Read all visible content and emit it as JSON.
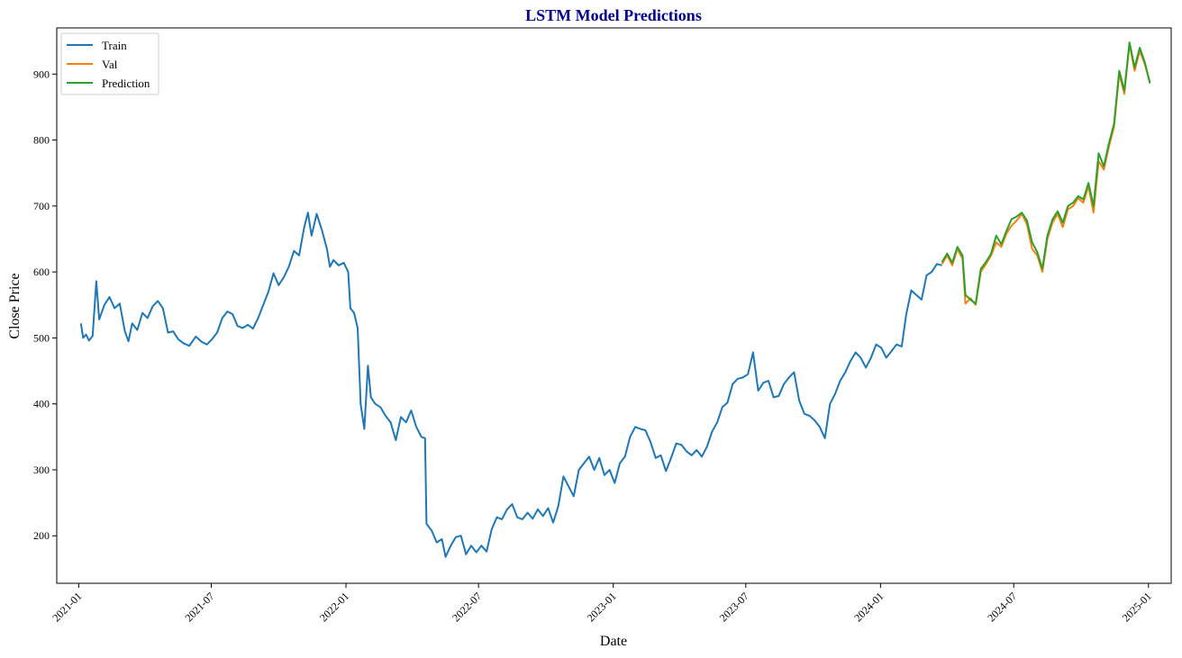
{
  "chart_data": {
    "type": "line",
    "title": "LSTM Model Predictions",
    "title_color": "#00008b",
    "xlabel": "Date",
    "ylabel": "Close Price",
    "xlim": [
      "2020-12-02",
      "2025-02-01"
    ],
    "ylim": [
      128,
      970
    ],
    "x_ticks": [
      "2021-01",
      "2021-07",
      "2022-01",
      "2022-07",
      "2023-01",
      "2023-07",
      "2024-01",
      "2024-07",
      "2025-01"
    ],
    "y_ticks": [
      200,
      300,
      400,
      500,
      600,
      700,
      800,
      900
    ],
    "grid": false,
    "legend_position": "top-left",
    "series": [
      {
        "name": "Train",
        "color": "#1f77b4",
        "points": [
          [
            "2021-01-04",
            522
          ],
          [
            "2021-01-07",
            500
          ],
          [
            "2021-01-11",
            505
          ],
          [
            "2021-01-15",
            496
          ],
          [
            "2021-01-20",
            503
          ],
          [
            "2021-01-25",
            586
          ],
          [
            "2021-01-29",
            528
          ],
          [
            "2021-02-05",
            550
          ],
          [
            "2021-02-12",
            562
          ],
          [
            "2021-02-19",
            545
          ],
          [
            "2021-02-26",
            552
          ],
          [
            "2021-03-05",
            510
          ],
          [
            "2021-03-10",
            495
          ],
          [
            "2021-03-15",
            522
          ],
          [
            "2021-03-22",
            512
          ],
          [
            "2021-03-29",
            538
          ],
          [
            "2021-04-05",
            530
          ],
          [
            "2021-04-12",
            548
          ],
          [
            "2021-04-19",
            556
          ],
          [
            "2021-04-26",
            545
          ],
          [
            "2021-05-03",
            508
          ],
          [
            "2021-05-10",
            510
          ],
          [
            "2021-05-17",
            498
          ],
          [
            "2021-05-24",
            492
          ],
          [
            "2021-06-01",
            488
          ],
          [
            "2021-06-10",
            502
          ],
          [
            "2021-06-18",
            494
          ],
          [
            "2021-06-25",
            490
          ],
          [
            "2021-07-02",
            498
          ],
          [
            "2021-07-09",
            508
          ],
          [
            "2021-07-16",
            530
          ],
          [
            "2021-07-23",
            540
          ],
          [
            "2021-07-30",
            536
          ],
          [
            "2021-08-06",
            518
          ],
          [
            "2021-08-13",
            515
          ],
          [
            "2021-08-20",
            520
          ],
          [
            "2021-08-27",
            514
          ],
          [
            "2021-09-03",
            530
          ],
          [
            "2021-09-10",
            550
          ],
          [
            "2021-09-17",
            570
          ],
          [
            "2021-09-24",
            598
          ],
          [
            "2021-10-01",
            580
          ],
          [
            "2021-10-08",
            592
          ],
          [
            "2021-10-15",
            608
          ],
          [
            "2021-10-22",
            632
          ],
          [
            "2021-10-29",
            625
          ],
          [
            "2021-11-05",
            668
          ],
          [
            "2021-11-10",
            690
          ],
          [
            "2021-11-15",
            655
          ],
          [
            "2021-11-22",
            688
          ],
          [
            "2021-11-29",
            664
          ],
          [
            "2021-12-06",
            635
          ],
          [
            "2021-12-10",
            608
          ],
          [
            "2021-12-15",
            618
          ],
          [
            "2021-12-22",
            610
          ],
          [
            "2021-12-29",
            614
          ],
          [
            "2022-01-04",
            600
          ],
          [
            "2022-01-07",
            545
          ],
          [
            "2022-01-12",
            538
          ],
          [
            "2022-01-17",
            515
          ],
          [
            "2022-01-21",
            400
          ],
          [
            "2022-01-26",
            362
          ],
          [
            "2022-01-31",
            458
          ],
          [
            "2022-02-04",
            410
          ],
          [
            "2022-02-10",
            400
          ],
          [
            "2022-02-17",
            395
          ],
          [
            "2022-02-24",
            382
          ],
          [
            "2022-03-03",
            372
          ],
          [
            "2022-03-10",
            345
          ],
          [
            "2022-03-17",
            380
          ],
          [
            "2022-03-24",
            372
          ],
          [
            "2022-03-31",
            390
          ],
          [
            "2022-04-07",
            365
          ],
          [
            "2022-04-14",
            350
          ],
          [
            "2022-04-19",
            348
          ],
          [
            "2022-04-21",
            218
          ],
          [
            "2022-04-28",
            208
          ],
          [
            "2022-05-05",
            190
          ],
          [
            "2022-05-12",
            195
          ],
          [
            "2022-05-17",
            168
          ],
          [
            "2022-05-24",
            185
          ],
          [
            "2022-05-31",
            198
          ],
          [
            "2022-06-07",
            200
          ],
          [
            "2022-06-14",
            172
          ],
          [
            "2022-06-21",
            185
          ],
          [
            "2022-06-28",
            175
          ],
          [
            "2022-07-05",
            185
          ],
          [
            "2022-07-12",
            176
          ],
          [
            "2022-07-19",
            210
          ],
          [
            "2022-07-26",
            228
          ],
          [
            "2022-08-02",
            225
          ],
          [
            "2022-08-09",
            240
          ],
          [
            "2022-08-16",
            248
          ],
          [
            "2022-08-23",
            228
          ],
          [
            "2022-08-30",
            225
          ],
          [
            "2022-09-06",
            235
          ],
          [
            "2022-09-13",
            226
          ],
          [
            "2022-09-20",
            240
          ],
          [
            "2022-09-27",
            230
          ],
          [
            "2022-10-04",
            242
          ],
          [
            "2022-10-11",
            220
          ],
          [
            "2022-10-18",
            245
          ],
          [
            "2022-10-25",
            290
          ],
          [
            "2022-11-01",
            275
          ],
          [
            "2022-11-08",
            260
          ],
          [
            "2022-11-15",
            300
          ],
          [
            "2022-11-22",
            310
          ],
          [
            "2022-11-29",
            320
          ],
          [
            "2022-12-06",
            300
          ],
          [
            "2022-12-13",
            318
          ],
          [
            "2022-12-20",
            292
          ],
          [
            "2022-12-27",
            300
          ],
          [
            "2023-01-03",
            280
          ],
          [
            "2023-01-10",
            310
          ],
          [
            "2023-01-17",
            320
          ],
          [
            "2023-01-24",
            350
          ],
          [
            "2023-01-31",
            365
          ],
          [
            "2023-02-07",
            362
          ],
          [
            "2023-02-14",
            360
          ],
          [
            "2023-02-21",
            342
          ],
          [
            "2023-02-28",
            318
          ],
          [
            "2023-03-07",
            322
          ],
          [
            "2023-03-14",
            298
          ],
          [
            "2023-03-21",
            318
          ],
          [
            "2023-03-28",
            340
          ],
          [
            "2023-04-04",
            338
          ],
          [
            "2023-04-11",
            328
          ],
          [
            "2023-04-18",
            322
          ],
          [
            "2023-04-25",
            330
          ],
          [
            "2023-05-02",
            320
          ],
          [
            "2023-05-09",
            335
          ],
          [
            "2023-05-16",
            358
          ],
          [
            "2023-05-23",
            372
          ],
          [
            "2023-05-30",
            395
          ],
          [
            "2023-06-06",
            402
          ],
          [
            "2023-06-13",
            430
          ],
          [
            "2023-06-20",
            438
          ],
          [
            "2023-06-27",
            440
          ],
          [
            "2023-07-04",
            445
          ],
          [
            "2023-07-11",
            478
          ],
          [
            "2023-07-18",
            420
          ],
          [
            "2023-07-25",
            432
          ],
          [
            "2023-08-01",
            435
          ],
          [
            "2023-08-08",
            410
          ],
          [
            "2023-08-15",
            412
          ],
          [
            "2023-08-22",
            430
          ],
          [
            "2023-08-29",
            440
          ],
          [
            "2023-09-05",
            448
          ],
          [
            "2023-09-12",
            405
          ],
          [
            "2023-09-19",
            385
          ],
          [
            "2023-09-26",
            382
          ],
          [
            "2023-10-03",
            375
          ],
          [
            "2023-10-10",
            365
          ],
          [
            "2023-10-17",
            348
          ],
          [
            "2023-10-24",
            400
          ],
          [
            "2023-10-31",
            415
          ],
          [
            "2023-11-07",
            435
          ],
          [
            "2023-11-14",
            448
          ],
          [
            "2023-11-21",
            465
          ],
          [
            "2023-11-28",
            478
          ],
          [
            "2023-12-05",
            470
          ],
          [
            "2023-12-12",
            455
          ],
          [
            "2023-12-19",
            470
          ],
          [
            "2023-12-26",
            490
          ],
          [
            "2024-01-02",
            485
          ],
          [
            "2024-01-09",
            470
          ],
          [
            "2024-01-16",
            480
          ],
          [
            "2024-01-23",
            490
          ],
          [
            "2024-01-30",
            487
          ],
          [
            "2024-02-05",
            535
          ],
          [
            "2024-02-12",
            572
          ],
          [
            "2024-02-19",
            565
          ],
          [
            "2024-02-26",
            558
          ],
          [
            "2024-03-04",
            595
          ],
          [
            "2024-03-11",
            600
          ],
          [
            "2024-03-18",
            612
          ],
          [
            "2024-03-25",
            610
          ]
        ]
      },
      {
        "name": "Val",
        "color": "#ff7f0e",
        "points": [
          [
            "2024-03-25",
            612
          ],
          [
            "2024-04-01",
            625
          ],
          [
            "2024-04-08",
            610
          ],
          [
            "2024-04-15",
            635
          ],
          [
            "2024-04-22",
            620
          ],
          [
            "2024-04-26",
            552
          ],
          [
            "2024-05-03",
            560
          ],
          [
            "2024-05-10",
            550
          ],
          [
            "2024-05-17",
            600
          ],
          [
            "2024-05-24",
            612
          ],
          [
            "2024-05-31",
            625
          ],
          [
            "2024-06-07",
            645
          ],
          [
            "2024-06-14",
            638
          ],
          [
            "2024-06-21",
            658
          ],
          [
            "2024-06-28",
            670
          ],
          [
            "2024-07-05",
            678
          ],
          [
            "2024-07-12",
            688
          ],
          [
            "2024-07-19",
            672
          ],
          [
            "2024-07-26",
            635
          ],
          [
            "2024-08-02",
            625
          ],
          [
            "2024-08-09",
            600
          ],
          [
            "2024-08-16",
            650
          ],
          [
            "2024-08-23",
            675
          ],
          [
            "2024-08-30",
            688
          ],
          [
            "2024-09-06",
            668
          ],
          [
            "2024-09-13",
            695
          ],
          [
            "2024-09-20",
            700
          ],
          [
            "2024-09-27",
            712
          ],
          [
            "2024-10-04",
            705
          ],
          [
            "2024-10-11",
            730
          ],
          [
            "2024-10-18",
            690
          ],
          [
            "2024-10-25",
            768
          ],
          [
            "2024-11-01",
            755
          ],
          [
            "2024-11-08",
            790
          ],
          [
            "2024-11-15",
            820
          ],
          [
            "2024-11-22",
            900
          ],
          [
            "2024-11-29",
            870
          ],
          [
            "2024-12-06",
            945
          ],
          [
            "2024-12-13",
            905
          ],
          [
            "2024-12-20",
            935
          ],
          [
            "2024-12-27",
            915
          ],
          [
            "2025-01-03",
            888
          ]
        ]
      },
      {
        "name": "Prediction",
        "color": "#2ca02c",
        "points": [
          [
            "2024-03-25",
            615
          ],
          [
            "2024-04-01",
            628
          ],
          [
            "2024-04-08",
            614
          ],
          [
            "2024-04-15",
            638
          ],
          [
            "2024-04-22",
            625
          ],
          [
            "2024-04-26",
            565
          ],
          [
            "2024-05-03",
            558
          ],
          [
            "2024-05-10",
            552
          ],
          [
            "2024-05-17",
            605
          ],
          [
            "2024-05-24",
            615
          ],
          [
            "2024-05-31",
            628
          ],
          [
            "2024-06-07",
            655
          ],
          [
            "2024-06-14",
            642
          ],
          [
            "2024-06-21",
            662
          ],
          [
            "2024-06-28",
            680
          ],
          [
            "2024-07-05",
            684
          ],
          [
            "2024-07-12",
            690
          ],
          [
            "2024-07-19",
            678
          ],
          [
            "2024-07-26",
            645
          ],
          [
            "2024-08-02",
            630
          ],
          [
            "2024-08-09",
            605
          ],
          [
            "2024-08-16",
            655
          ],
          [
            "2024-08-23",
            680
          ],
          [
            "2024-08-30",
            692
          ],
          [
            "2024-09-06",
            675
          ],
          [
            "2024-09-13",
            700
          ],
          [
            "2024-09-20",
            705
          ],
          [
            "2024-09-27",
            715
          ],
          [
            "2024-10-04",
            710
          ],
          [
            "2024-10-11",
            735
          ],
          [
            "2024-10-18",
            700
          ],
          [
            "2024-10-25",
            780
          ],
          [
            "2024-11-01",
            760
          ],
          [
            "2024-11-08",
            795
          ],
          [
            "2024-11-15",
            825
          ],
          [
            "2024-11-22",
            905
          ],
          [
            "2024-11-29",
            875
          ],
          [
            "2024-12-06",
            948
          ],
          [
            "2024-12-13",
            910
          ],
          [
            "2024-12-20",
            940
          ],
          [
            "2024-12-27",
            918
          ],
          [
            "2025-01-03",
            886
          ]
        ]
      }
    ]
  }
}
